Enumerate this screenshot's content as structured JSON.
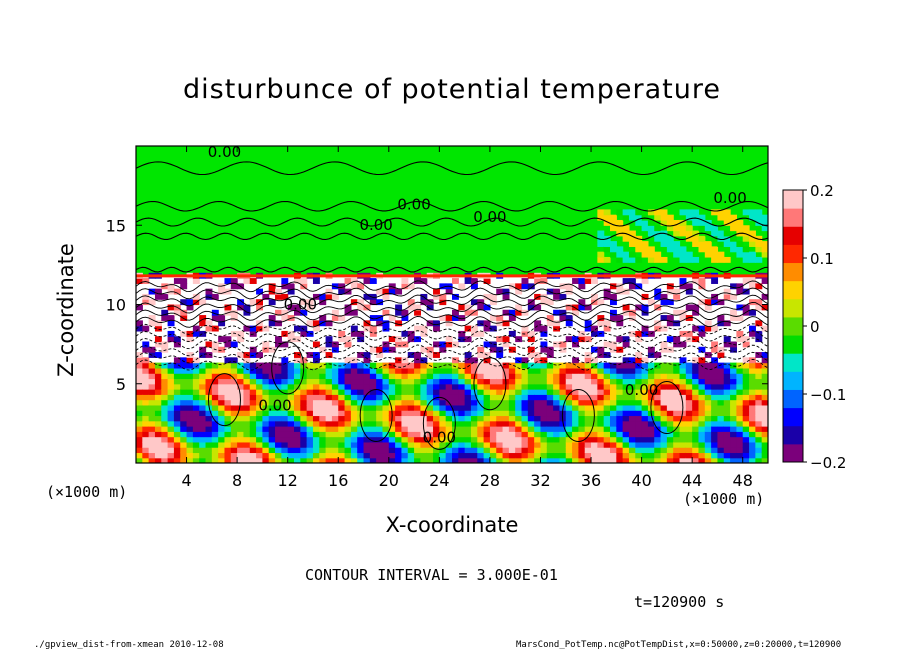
{
  "chart_data": {
    "type": "heatmap",
    "title": "disturbunce of potential temperature",
    "xlabel": "X-coordinate",
    "ylabel": "Z-coordinate",
    "x_unit": "(×1000 m)",
    "x_ticks": [
      4,
      8,
      12,
      16,
      20,
      24,
      28,
      32,
      36,
      40,
      44,
      48
    ],
    "y_ticks": [
      5,
      10,
      15
    ],
    "xlim": [
      0,
      50
    ],
    "ylim": [
      0,
      20
    ],
    "colorbar": {
      "range": [
        -0.2,
        0.2
      ],
      "ticks": [
        "0.2",
        "0.1",
        "0",
        "−0.1",
        "−0.2"
      ],
      "tick_values": [
        0.2,
        0.1,
        0,
        -0.1,
        -0.2
      ],
      "colors": [
        "#7b007b",
        "#1a00a8",
        "#0000ff",
        "#0064ff",
        "#00b4ff",
        "#00e6c8",
        "#00dc00",
        "#5adc00",
        "#c8e600",
        "#ffd200",
        "#ff8c00",
        "#ff2800",
        "#e60000",
        "#ff7878",
        "#ffc8c8"
      ]
    },
    "contour_labels": [
      "0.00"
    ],
    "contour_interval": "CONTOUR INTERVAL = 3.000E-01",
    "time": "t=120900 s"
  },
  "footer": {
    "left": "./gpview_dist-from-xmean  2010-12-08",
    "right": "MarsCond_PotTemp.nc@PotTempDist,x=0:50000,z=0:20000,t=120900"
  }
}
